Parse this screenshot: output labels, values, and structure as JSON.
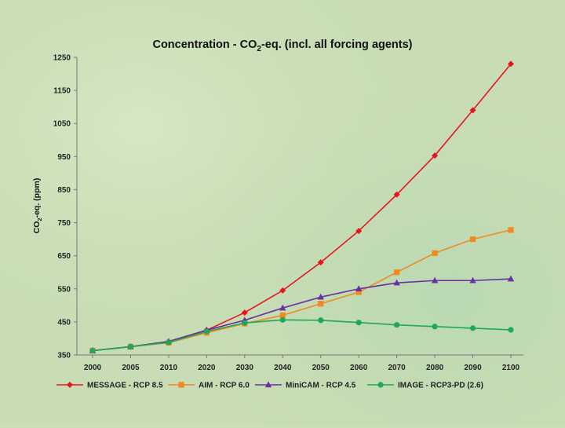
{
  "chart_data": {
    "type": "line",
    "title_main": "Concentration - CO",
    "title_sub": "2",
    "title_rest": "-eq. (incl. all forcing agents)",
    "ylabel_main": "CO",
    "ylabel_sub": "2",
    "ylabel_rest": "-eq. (ppm)",
    "xlabel": "",
    "categories": [
      "2000",
      "2005",
      "2010",
      "2020",
      "2030",
      "2040",
      "2050",
      "2060",
      "2070",
      "2080",
      "2090",
      "2100"
    ],
    "ylim": [
      350,
      1250
    ],
    "yticks": [
      350,
      450,
      550,
      650,
      750,
      850,
      950,
      1050,
      1150,
      1250
    ],
    "grid": false,
    "legend_position": "bottom",
    "series": [
      {
        "name": "MESSAGE - RCP 8.5",
        "color": "#e8141e",
        "marker": "diamond",
        "values": [
          363,
          375,
          390,
          425,
          478,
          545,
          630,
          725,
          835,
          953,
          1090,
          1230
        ]
      },
      {
        "name": "AIM - RCP 6.0",
        "color": "#f08a1e",
        "marker": "square",
        "values": [
          363,
          375,
          387,
          417,
          445,
          470,
          505,
          540,
          600,
          658,
          700,
          728
        ]
      },
      {
        "name": "MiniCAM - RCP 4.5",
        "color": "#6a2fa0",
        "marker": "triangle",
        "values": [
          363,
          375,
          391,
          425,
          455,
          492,
          525,
          550,
          568,
          575,
          575,
          580
        ]
      },
      {
        "name": "IMAGE - RCP3-PD (2.6)",
        "color": "#1ea85a",
        "marker": "circle",
        "values": [
          363,
          375,
          388,
          421,
          447,
          456,
          455,
          448,
          441,
          436,
          431,
          426
        ]
      }
    ]
  }
}
